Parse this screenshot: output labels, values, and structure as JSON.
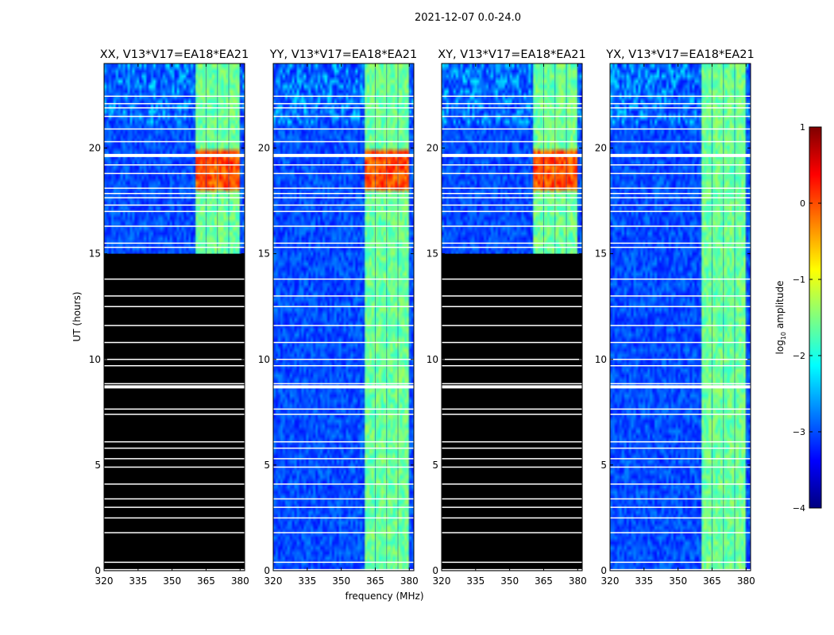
{
  "chart_data": {
    "type": "heatmap",
    "title": "2021-12-07 0.0-24.0",
    "xlabel": "frequency (MHz)",
    "ylabel": "UT (hours)",
    "xlim": [
      320,
      382
    ],
    "ylim": [
      0,
      24
    ],
    "x_ticks": [
      320,
      335,
      350,
      365,
      380
    ],
    "y_ticks": [
      0,
      5,
      10,
      15,
      20
    ],
    "colormap": "jet",
    "colorbar": {
      "label": "log10 amplitude",
      "label_main": "log",
      "label_sub": "10",
      "label_tail": " amplitude",
      "range": [
        -4,
        1
      ],
      "ticks": [
        "1",
        "0",
        "−1",
        "−2",
        "−3",
        "−4"
      ],
      "tick_values": [
        1,
        0,
        -1,
        -2,
        -3,
        -4
      ]
    },
    "rfi_band_mhz": [
      360,
      380
    ],
    "rfi_stripes_mhz": [
      360,
      365,
      370,
      375,
      380
    ],
    "flagged_times_ut": [
      0.05,
      0.4,
      1.8,
      2.5,
      3.0,
      3.4,
      4.1,
      4.9,
      5.3,
      5.8,
      6.1,
      7.4,
      7.65,
      8.7,
      8.85,
      9.7,
      10.0,
      10.8,
      11.6,
      12.5,
      13.0,
      13.8,
      15.3,
      15.5,
      16.3,
      17.0,
      17.3,
      17.65,
      17.85,
      18.1,
      18.8,
      19.2,
      19.65,
      20.3,
      20.9,
      21.5,
      21.9,
      22.1,
      22.45
    ],
    "panels": [
      {
        "title": "XX, V13*V17=EA18*EA21",
        "polarization": "XX",
        "blanked_below_ut": 15
      },
      {
        "title": "YY, V13*V17=EA18*EA21",
        "polarization": "YY",
        "blanked_below_ut": null
      },
      {
        "title": "XY, V13*V17=EA18*EA21",
        "polarization": "XY",
        "blanked_below_ut": 15
      },
      {
        "title": "YX, V13*V17=EA18*EA21",
        "polarization": "YX",
        "blanked_below_ut": null
      }
    ]
  }
}
